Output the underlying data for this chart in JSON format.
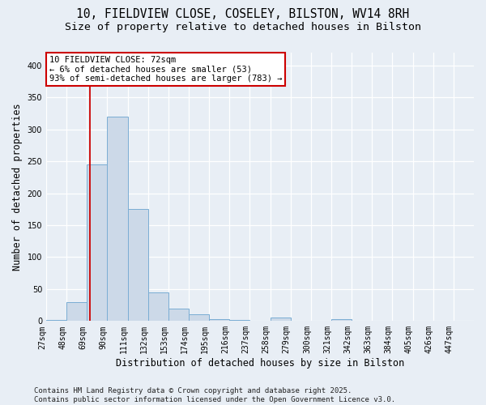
{
  "title_line1": "10, FIELDVIEW CLOSE, COSELEY, BILSTON, WV14 8RH",
  "title_line2": "Size of property relative to detached houses in Bilston",
  "xlabel": "Distribution of detached houses by size in Bilston",
  "ylabel": "Number of detached properties",
  "bin_labels": [
    "27sqm",
    "48sqm",
    "69sqm",
    "90sqm",
    "111sqm",
    "132sqm",
    "153sqm",
    "174sqm",
    "195sqm",
    "216sqm",
    "237sqm",
    "258sqm",
    "279sqm",
    "300sqm",
    "321sqm",
    "342sqm",
    "363sqm",
    "384sqm",
    "405sqm",
    "426sqm",
    "447sqm"
  ],
  "bin_left": [
    27,
    48,
    69,
    90,
    111,
    132,
    153,
    174,
    195,
    216,
    237,
    258,
    279,
    300,
    321,
    342,
    363,
    384,
    405,
    426
  ],
  "bin_width": 21,
  "counts": [
    2,
    30,
    245,
    320,
    175,
    45,
    20,
    10,
    3,
    2,
    0,
    5,
    0,
    0,
    3,
    0,
    0,
    0,
    0,
    0
  ],
  "bar_face_color": "#ccd9e8",
  "bar_edge_color": "#7aadd4",
  "property_size": 72,
  "property_line_color": "#cc0000",
  "annotation_text": "10 FIELDVIEW CLOSE: 72sqm\n← 6% of detached houses are smaller (53)\n93% of semi-detached houses are larger (783) →",
  "annotation_box_facecolor": "#ffffff",
  "annotation_box_edgecolor": "#cc0000",
  "ylim_max": 420,
  "yticks": [
    0,
    50,
    100,
    150,
    200,
    250,
    300,
    350,
    400
  ],
  "background_color": "#e8eef5",
  "plot_bg_color": "#e8eef5",
  "grid_color": "#ffffff",
  "title1_fontsize": 10.5,
  "title2_fontsize": 9.5,
  "ylabel_fontsize": 8.5,
  "xlabel_fontsize": 8.5,
  "tick_fontsize": 7,
  "annot_fontsize": 7.5,
  "footer_fontsize": 6.5,
  "footer_text": "Contains HM Land Registry data © Crown copyright and database right 2025.\nContains public sector information licensed under the Open Government Licence v3.0."
}
